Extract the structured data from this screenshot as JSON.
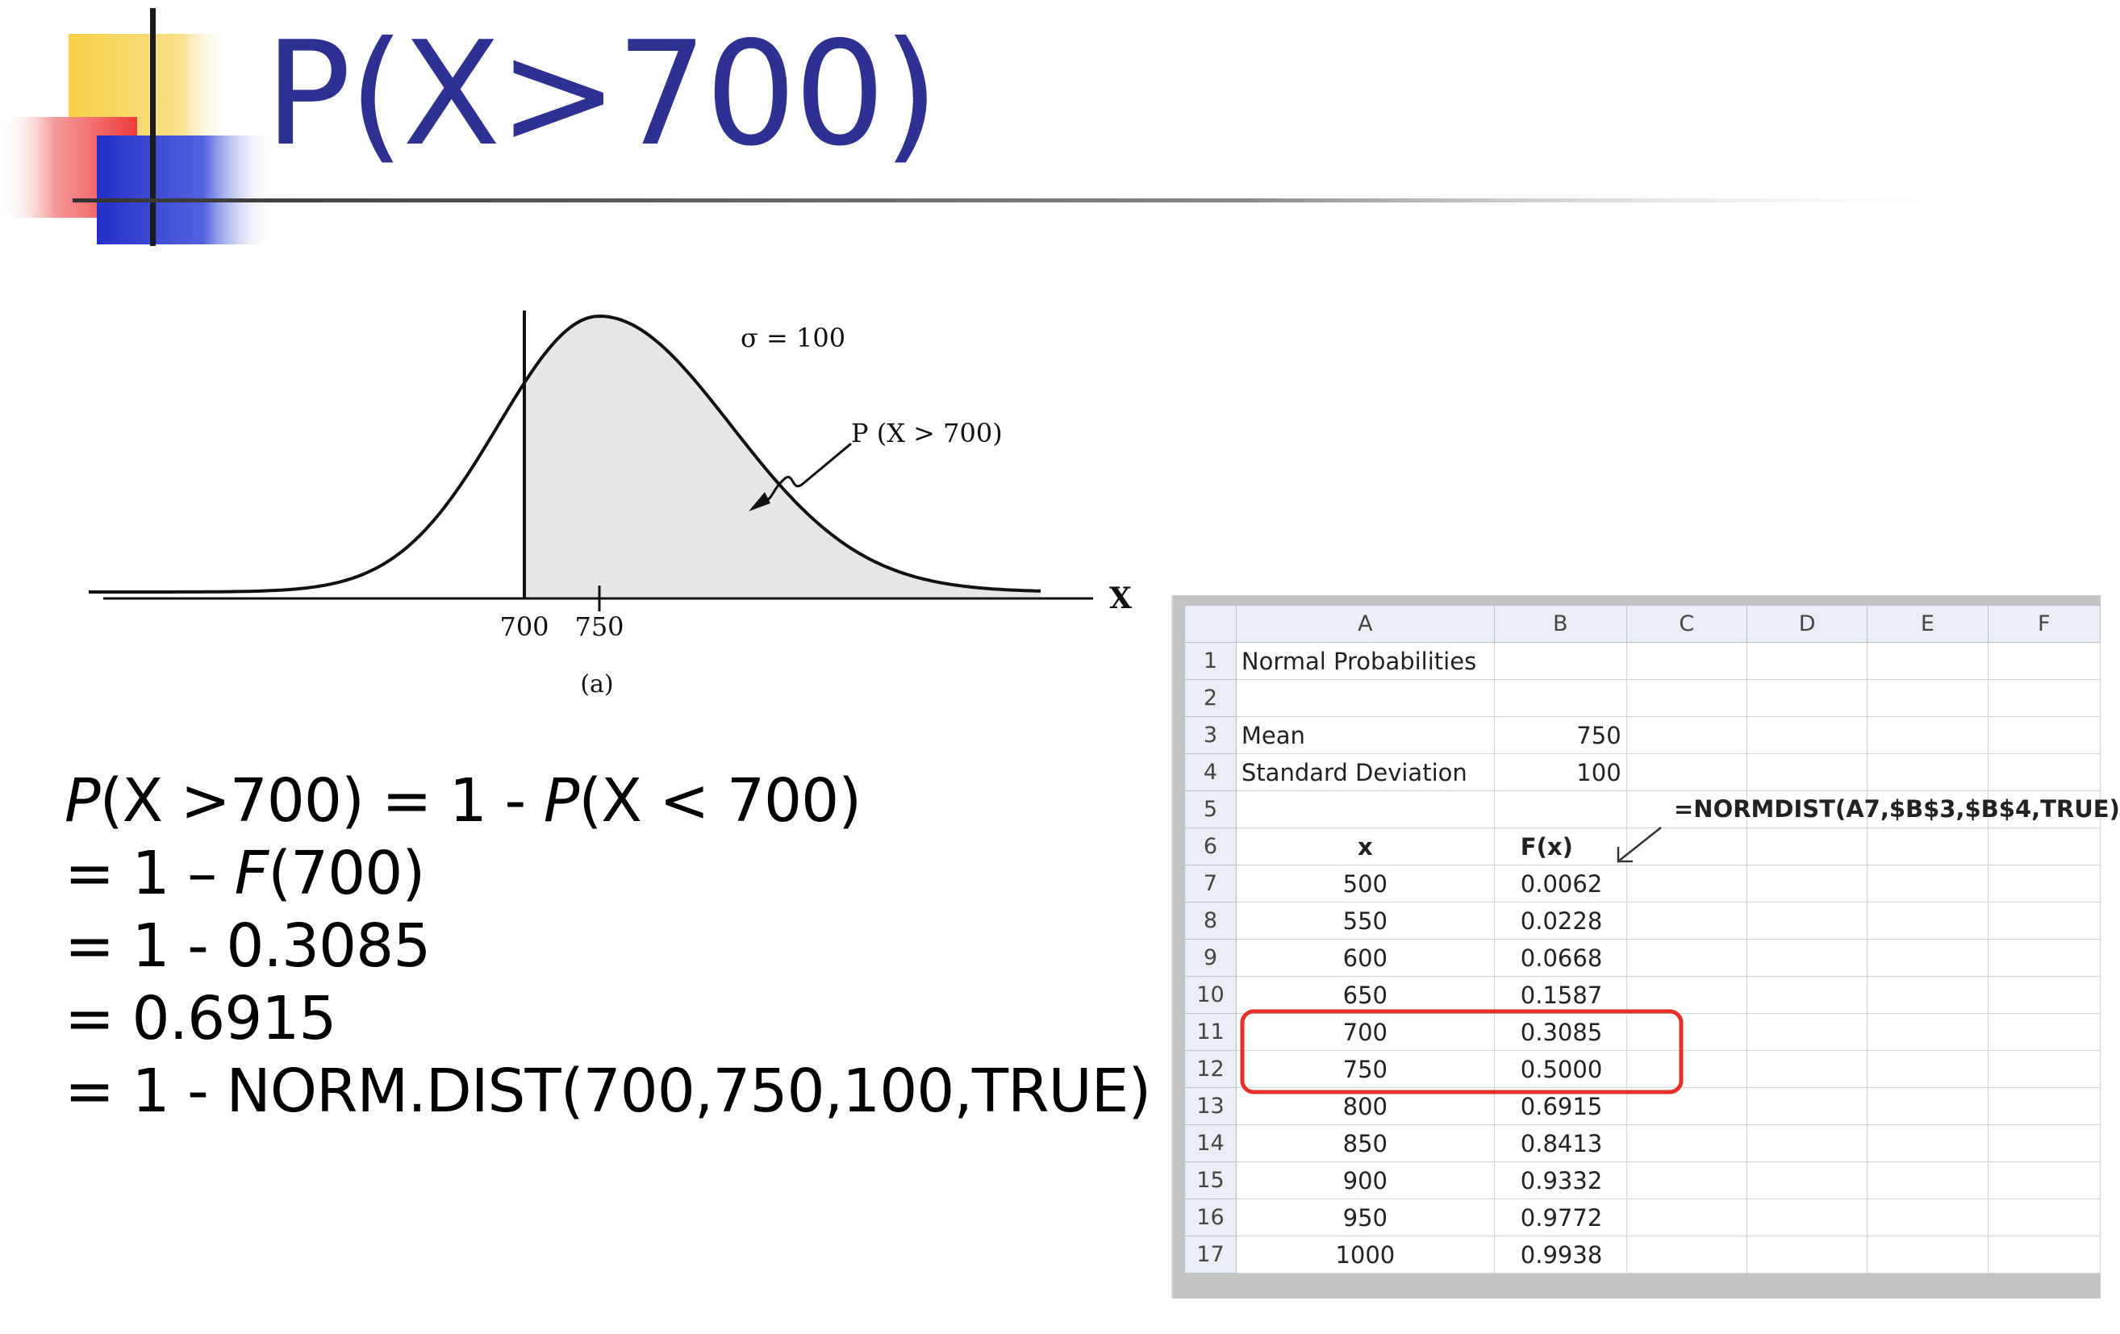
{
  "title": "P(X>700)",
  "colors": {
    "title": "#2e3192",
    "accent_yellow": "#f7d046",
    "accent_red": "#f05050",
    "accent_blue": "#2b3fd0",
    "highlight": "#e8302a",
    "sheet_header": "#e9eef5"
  },
  "curve": {
    "sigma_label": "σ = 100",
    "prob_label": "P (X > 700)",
    "axis_label": "X",
    "tick_700": "700",
    "tick_750": "750",
    "caption": "(a)"
  },
  "formula": {
    "line1": {
      "lhs_p": "P",
      "lhs_arg": "(X >700) = 1 - ",
      "rhs_p": "P",
      "rhs_arg": "(X < 700)"
    },
    "line2": {
      "prefix": "= 1 – ",
      "f": "F",
      "suffix": "(700)"
    },
    "line3": "= 1 - 0.3085",
    "line4": "= 0.6915",
    "line5": "= 1 - NORM.DIST(700,750,100,TRUE)"
  },
  "spreadsheet": {
    "columns": [
      "A",
      "B",
      "C",
      "D",
      "E",
      "F"
    ],
    "rows": [
      {
        "n": "1",
        "a": "Normal Probabilities",
        "b": ""
      },
      {
        "n": "2",
        "a": "",
        "b": ""
      },
      {
        "n": "3",
        "a": "Mean",
        "b": "750"
      },
      {
        "n": "4",
        "a": "Standard Deviation",
        "b": "100"
      },
      {
        "n": "5",
        "a": "",
        "b": ""
      },
      {
        "n": "6",
        "a": "x",
        "b": "F(x)"
      },
      {
        "n": "7",
        "a": "500",
        "b": "0.0062"
      },
      {
        "n": "8",
        "a": "550",
        "b": "0.0228"
      },
      {
        "n": "9",
        "a": "600",
        "b": "0.0668"
      },
      {
        "n": "10",
        "a": "650",
        "b": "0.1587"
      },
      {
        "n": "11",
        "a": "700",
        "b": "0.3085"
      },
      {
        "n": "12",
        "a": "750",
        "b": "0.5000"
      },
      {
        "n": "13",
        "a": "800",
        "b": "0.6915"
      },
      {
        "n": "14",
        "a": "850",
        "b": "0.8413"
      },
      {
        "n": "15",
        "a": "900",
        "b": "0.9332"
      },
      {
        "n": "16",
        "a": "950",
        "b": "0.9772"
      },
      {
        "n": "17",
        "a": "1000",
        "b": "0.9938"
      }
    ],
    "formula_note": "=NORMDIST(A7,$B$3,$B$4,TRUE)"
  }
}
